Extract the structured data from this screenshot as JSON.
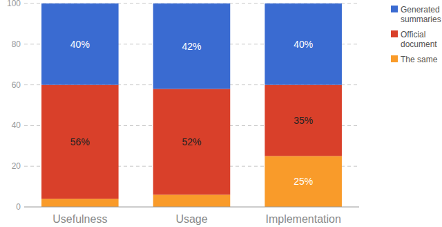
{
  "chart_data": {
    "type": "bar",
    "stacked": true,
    "grid": true,
    "data_labels": true,
    "legend": "upper-right",
    "categories": [
      "Usefulness",
      "Usage",
      "Implementation"
    ],
    "series": [
      {
        "name": "Generated summaries",
        "color": "#3a6bd1",
        "values": [
          40,
          42,
          40
        ],
        "value_labels": [
          "40%",
          "42%",
          "40%"
        ]
      },
      {
        "name": "Official document",
        "color": "#d9402a",
        "values": [
          56,
          52,
          35
        ],
        "value_labels": [
          "56%",
          "52%",
          "35%"
        ]
      },
      {
        "name": "The same",
        "color": "#f99b2a",
        "values": [
          4,
          6,
          25
        ],
        "value_labels": [
          null,
          null,
          "25%"
        ]
      }
    ],
    "ylim": [
      0,
      100
    ],
    "yticks": [
      0,
      20,
      40,
      60,
      80,
      100
    ]
  }
}
